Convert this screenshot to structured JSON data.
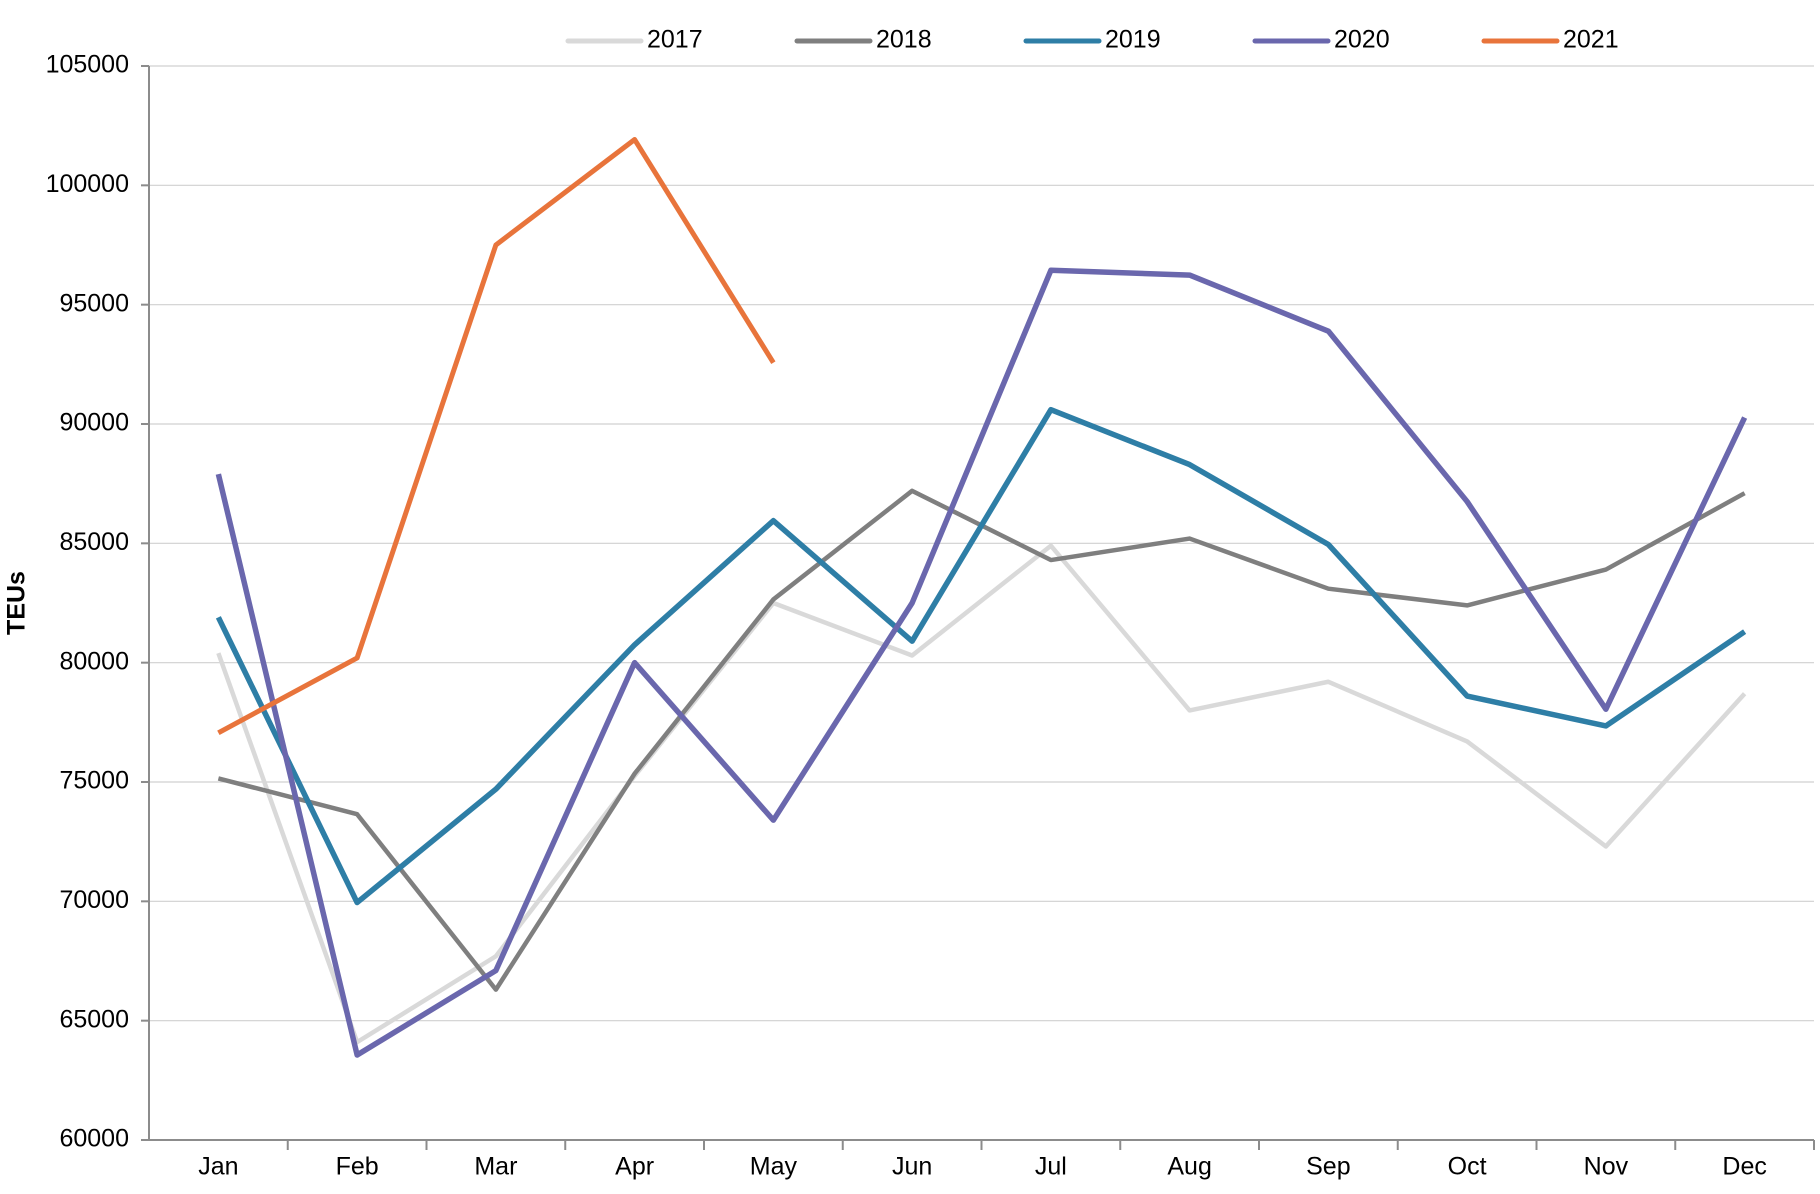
{
  "chart_data": {
    "type": "line",
    "y_label": "TEUs",
    "categories": [
      "Jan",
      "Feb",
      "Mar",
      "Apr",
      "May",
      "Jun",
      "Jul",
      "Aug",
      "Sep",
      "Oct",
      "Nov",
      "Dec"
    ],
    "series": [
      {
        "name": "2017",
        "color": "#d9d9d9",
        "values": [
          80400,
          64100,
          67700,
          75250,
          82500,
          80300,
          84900,
          78000,
          79200,
          76700,
          72300,
          78700
        ]
      },
      {
        "name": "2018",
        "color": "#7f7f7f",
        "values": [
          75150,
          73650,
          66300,
          75350,
          82650,
          87200,
          84300,
          85200,
          83100,
          82400,
          83900,
          87100
        ]
      },
      {
        "name": "2019",
        "color": "#2e7ea6",
        "values": [
          81900,
          69950,
          74700,
          80750,
          85950,
          80900,
          90600,
          88300,
          84950,
          78600,
          77350,
          81300
        ]
      },
      {
        "name": "2020",
        "color": "#6a67ad",
        "values": [
          87900,
          63560,
          67100,
          80000,
          73400,
          82500,
          96440,
          96240,
          93890,
          86750,
          78050,
          90270
        ]
      },
      {
        "name": "2021",
        "color": "#e8743b",
        "values": [
          77060,
          80200,
          97500,
          101920,
          92570,
          null,
          null,
          null,
          null,
          null,
          null,
          null
        ]
      }
    ],
    "ylim": [
      60000,
      105000
    ],
    "yticks": [
      60000,
      65000,
      70000,
      75000,
      80000,
      85000,
      90000,
      95000,
      100000,
      105000
    ],
    "grid": true,
    "legend": "top"
  }
}
